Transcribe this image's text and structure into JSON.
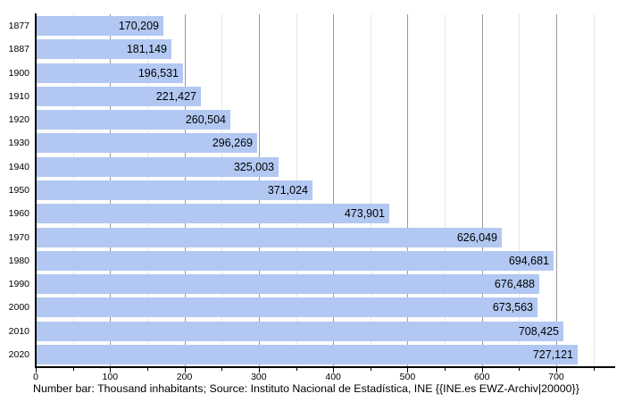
{
  "chart_data": {
    "type": "bar",
    "orientation": "horizontal",
    "title": "",
    "xlabel": "",
    "ylabel": "",
    "categories": [
      "1877",
      "1887",
      "1900",
      "1910",
      "1920",
      "1930",
      "1940",
      "1950",
      "1960",
      "1970",
      "1980",
      "1990",
      "2000",
      "2010",
      "2020"
    ],
    "values": [
      170209,
      181149,
      196531,
      221427,
      260504,
      296269,
      325003,
      371024,
      473901,
      626049,
      694681,
      676488,
      673563,
      708425,
      727121
    ],
    "value_labels": [
      "170,209",
      "181,149",
      "196,531",
      "221,427",
      "260,504",
      "296,269",
      "325,003",
      "371,024",
      "473,901",
      "626,049",
      "694,681",
      "676,488",
      "673,563",
      "708,425",
      "727,121"
    ],
    "x_axis": {
      "unit": "thousand inhabitants",
      "major_ticks": [
        0,
        100,
        200,
        300,
        400,
        500,
        600,
        700
      ],
      "minor_ticks": [
        50,
        150,
        250,
        350,
        450,
        550,
        650,
        750
      ],
      "xlim": [
        0,
        778
      ]
    },
    "grid": {
      "vertical_major": true,
      "vertical_minor": true,
      "horizontal": false
    },
    "legend": {
      "visible": false
    },
    "colors": {
      "bar": "#b2c8f2",
      "axis": "#000000",
      "grid_major": "#9a9a9a",
      "grid_minor": "#e7e7e7",
      "text": "#000000",
      "background": "#ffffff"
    },
    "caption": "Number bar: Thousand inhabitants; Source: Instituto Nacional de Estadística, INE {{INE.es EWZ-Archiv|20000}}"
  }
}
